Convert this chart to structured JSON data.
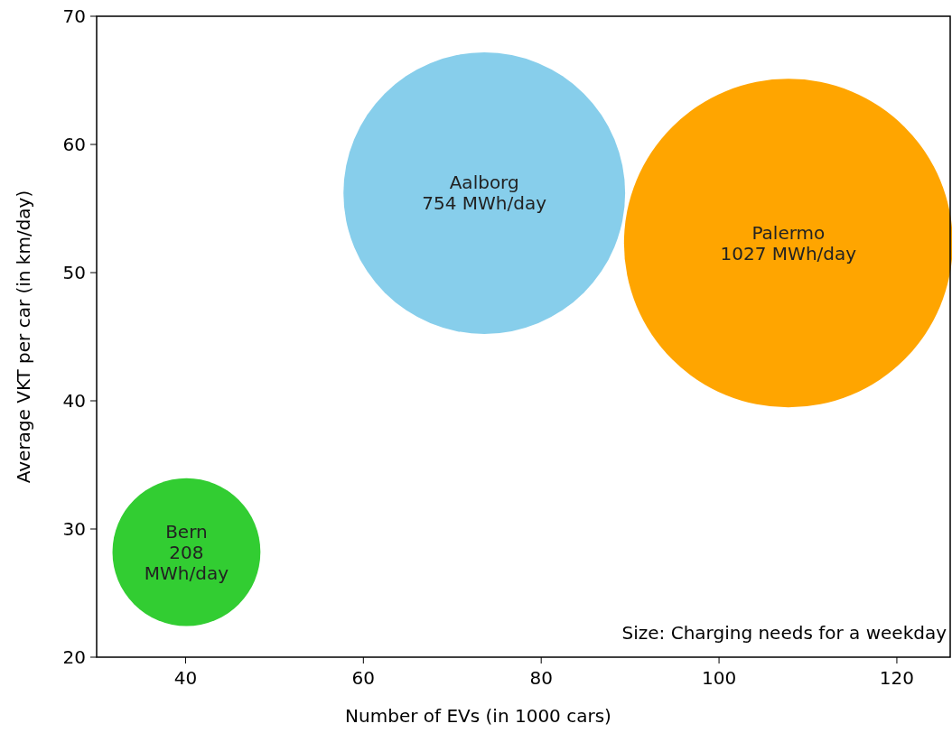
{
  "chart_data": {
    "type": "bubble",
    "xlabel": "Number of EVs (in 1000 cars)",
    "ylabel": "Average VKT per car (in km/day)",
    "xlim": [
      30,
      126
    ],
    "xticks": [
      40,
      60,
      80,
      100,
      120
    ],
    "ylim": [
      20,
      70
    ],
    "yticks": [
      20,
      30,
      40,
      50,
      60,
      70
    ],
    "grid": false,
    "series": [
      {
        "name": "Bern",
        "color": "#32cd32",
        "x": [
          40.1
        ],
        "values": [
          28.2
        ],
        "sizes": [
          0.2025
        ]
      },
      {
        "name": "Aalborg",
        "color": "#87ceeb",
        "x": [
          73.6
        ],
        "values": [
          56.2
        ],
        "sizes": [
          0.734
        ]
      },
      {
        "name": "Palermo",
        "color": "#ffa500",
        "x": [
          107.8
        ],
        "values": [
          52.3
        ],
        "sizes": [
          1
        ]
      }
    ],
    "annotations": [
      {
        "text": "208 MWh/day",
        "x": 40.1,
        "y": 28.2
      },
      {
        "text": "754 MWh/day",
        "x": 73.6,
        "y": 56.2
      },
      {
        "text": "1027 MWh/day",
        "x": 107.8,
        "y": 52.3
      },
      "Size: Charging needs for a weekday"
    ]
  }
}
